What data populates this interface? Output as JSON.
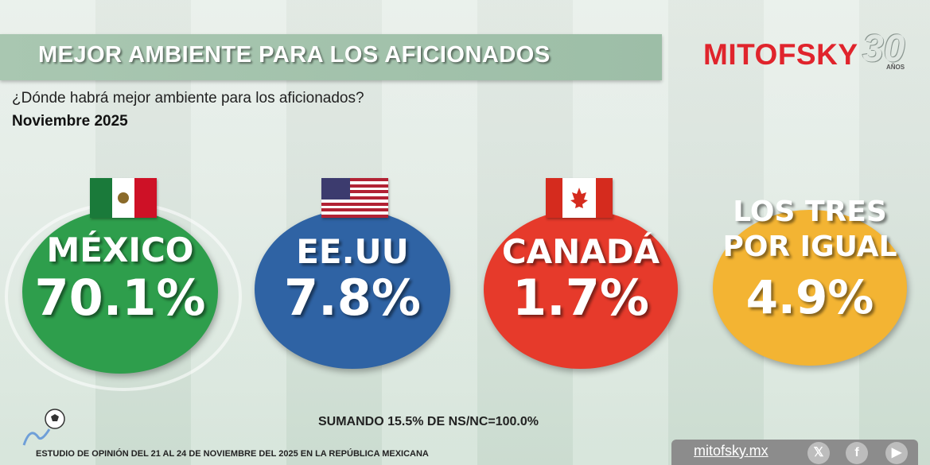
{
  "header": {
    "title": "MEJOR AMBIENTE PARA LOS AFICIONADOS",
    "logo_text": "MITOFSKY",
    "logo_anniversary": "30",
    "logo_anniversary_suffix": "AÑOS"
  },
  "question": "¿Dónde habrá mejor ambiente para los aficionados?",
  "date": "Noviembre 2025",
  "chart_data": {
    "type": "bubble-percent",
    "title": "MEJOR AMBIENTE PARA LOS AFICIONADOS",
    "unit": "%",
    "categories": [
      "MÉXICO",
      "EE.UU",
      "CANADÁ",
      "LOS TRES POR IGUAL"
    ],
    "values": [
      70.1,
      7.8,
      1.7,
      4.9
    ],
    "labels": [
      "70.1%",
      "7.8%",
      "1.7%",
      "4.9%"
    ],
    "colors": [
      "#2e9e4c",
      "#2f63a4",
      "#e63a2b",
      "#f3b433"
    ],
    "flags": [
      "mexico-flag",
      "usa-flag",
      "canada-flag",
      ""
    ]
  },
  "cards": [
    {
      "label_lines": [
        "MÉXICO"
      ],
      "value": "70.1%"
    },
    {
      "label_lines": [
        "EE.UU"
      ],
      "value": "7.8%"
    },
    {
      "label_lines": [
        "CANADÁ"
      ],
      "value": "1.7%"
    },
    {
      "label_lines": [
        "LOS TRES",
        "POR IGUAL"
      ],
      "value": "4.9%"
    }
  ],
  "footer": {
    "note": "SUMANDO 15.5% DE NS/NC=100.0%",
    "study": "ESTUDIO DE OPINIÓN DEL 21 AL 24 DE NOVIEMBRE DEL 2025 EN LA REPÚBLICA MEXICANA",
    "website": "mitofsky.mx",
    "social_icons": [
      "x-icon",
      "facebook-icon",
      "youtube-icon"
    ]
  }
}
